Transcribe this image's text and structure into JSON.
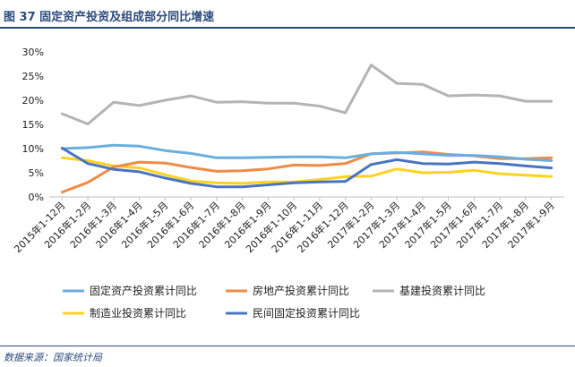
{
  "header": {
    "title": "图 37  固定资产投资及组成部分同比增速"
  },
  "footer": {
    "source": "数据来源：国家统计局"
  },
  "colors": {
    "title": "#2b4a7c",
    "fixed_asset": "#6aaee0",
    "real_estate": "#f08b45",
    "infrastructure": "#b4b4b4",
    "manufacturing": "#ffd21f",
    "private": "#4a74c0"
  },
  "chart_data": {
    "type": "line",
    "title": "",
    "xlabel": "",
    "ylabel": "",
    "ylim": [
      0,
      30
    ],
    "yticks": [
      0,
      5,
      10,
      15,
      20,
      25,
      30
    ],
    "ytick_labels": [
      "0%",
      "5%",
      "10%",
      "15%",
      "20%",
      "25%",
      "30%"
    ],
    "grid": false,
    "legend_position": "bottom",
    "categories": [
      "2015年1-12月",
      "2016年1-2月",
      "2016年1-3月",
      "2016年1-4月",
      "2016年1-5月",
      "2016年1-6月",
      "2016年1-7月",
      "2016年1-8月",
      "2016年1-9月",
      "2016年1-10月",
      "2016年1-11月",
      "2016年1-12月",
      "2017年1-2月",
      "2017年1-3月",
      "2017年1-4月",
      "2017年1-5月",
      "2017年1-6月",
      "2017年1-7月",
      "2017年1-8月",
      "2017年1-9月"
    ],
    "series": [
      {
        "key": "fixed_asset",
        "name": "固定资产投资累计同比",
        "values": [
          10.0,
          10.2,
          10.7,
          10.5,
          9.6,
          9.0,
          8.1,
          8.1,
          8.2,
          8.3,
          8.3,
          8.1,
          8.9,
          9.2,
          8.9,
          8.6,
          8.6,
          8.3,
          7.8,
          7.5
        ]
      },
      {
        "key": "real_estate",
        "name": "房地产投资累计同比",
        "values": [
          1.0,
          3.0,
          6.2,
          7.2,
          7.0,
          6.1,
          5.3,
          5.4,
          5.8,
          6.6,
          6.5,
          6.9,
          8.9,
          9.1,
          9.3,
          8.8,
          8.5,
          7.9,
          7.9,
          8.1
        ]
      },
      {
        "key": "infrastructure",
        "name": "基建投资累计同比",
        "values": [
          17.2,
          15.1,
          19.6,
          18.9,
          20.0,
          20.9,
          19.6,
          19.7,
          19.4,
          19.4,
          18.8,
          17.4,
          27.3,
          23.5,
          23.3,
          20.9,
          21.1,
          20.9,
          19.8,
          19.8
        ]
      },
      {
        "key": "manufacturing",
        "name": "制造业投资累计同比",
        "values": [
          8.1,
          7.5,
          6.4,
          6.0,
          4.6,
          3.3,
          2.9,
          2.8,
          3.1,
          3.1,
          3.6,
          4.2,
          4.3,
          5.8,
          5.0,
          5.1,
          5.5,
          4.8,
          4.5,
          4.2
        ]
      },
      {
        "key": "private",
        "name": "民间固定投资累计同比",
        "values": [
          10.1,
          6.9,
          5.7,
          5.2,
          3.9,
          2.8,
          2.1,
          2.1,
          2.5,
          2.9,
          3.1,
          3.2,
          6.7,
          7.7,
          6.9,
          6.8,
          7.2,
          6.9,
          6.4,
          6.0
        ]
      }
    ]
  }
}
